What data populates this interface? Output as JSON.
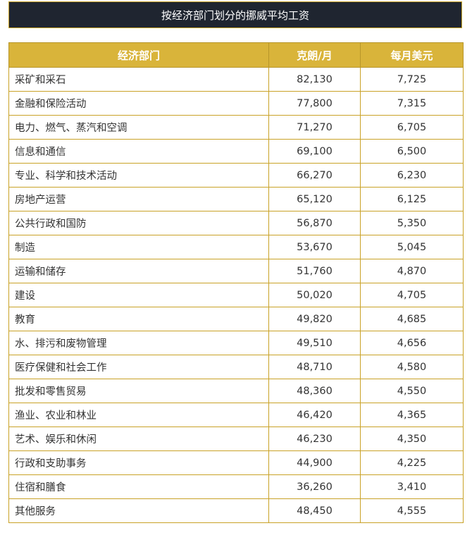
{
  "title": "按经济部门划分的挪威平均工资",
  "table": {
    "headers": [
      "经济部门",
      "克朗/月",
      "每月美元"
    ],
    "rows": [
      [
        "采矿和采石",
        "82,130",
        "7,725"
      ],
      [
        "金融和保险活动",
        "77,800",
        "7,315"
      ],
      [
        "电力、燃气、蒸汽和空调",
        "71,270",
        "6,705"
      ],
      [
        "信息和通信",
        "69,100",
        "6,500"
      ],
      [
        "专业、科学和技术活动",
        "66,270",
        "6,230"
      ],
      [
        "房地产运营",
        "65,120",
        "6,125"
      ],
      [
        "公共行政和国防",
        "56,870",
        "5,350"
      ],
      [
        "制造",
        "53,670",
        "5,045"
      ],
      [
        "运输和储存",
        "51,760",
        "4,870"
      ],
      [
        "建设",
        "50,020",
        "4,705"
      ],
      [
        "教育",
        "49,820",
        "4,685"
      ],
      [
        "水、排污和废物管理",
        "49,510",
        "4,656"
      ],
      [
        "医疗保健和社会工作",
        "48,710",
        "4,580"
      ],
      [
        "批发和零售贸易",
        "48,360",
        "4,550"
      ],
      [
        "渔业、农业和林业",
        "46,420",
        "4,365"
      ],
      [
        "艺术、娱乐和休闲",
        "46,230",
        "4,350"
      ],
      [
        "行政和支助事务",
        "44,900",
        "4,225"
      ],
      [
        "住宿和膳食",
        "36,260",
        "3,410"
      ],
      [
        "其他服务",
        "48,450",
        "4,555"
      ]
    ]
  }
}
